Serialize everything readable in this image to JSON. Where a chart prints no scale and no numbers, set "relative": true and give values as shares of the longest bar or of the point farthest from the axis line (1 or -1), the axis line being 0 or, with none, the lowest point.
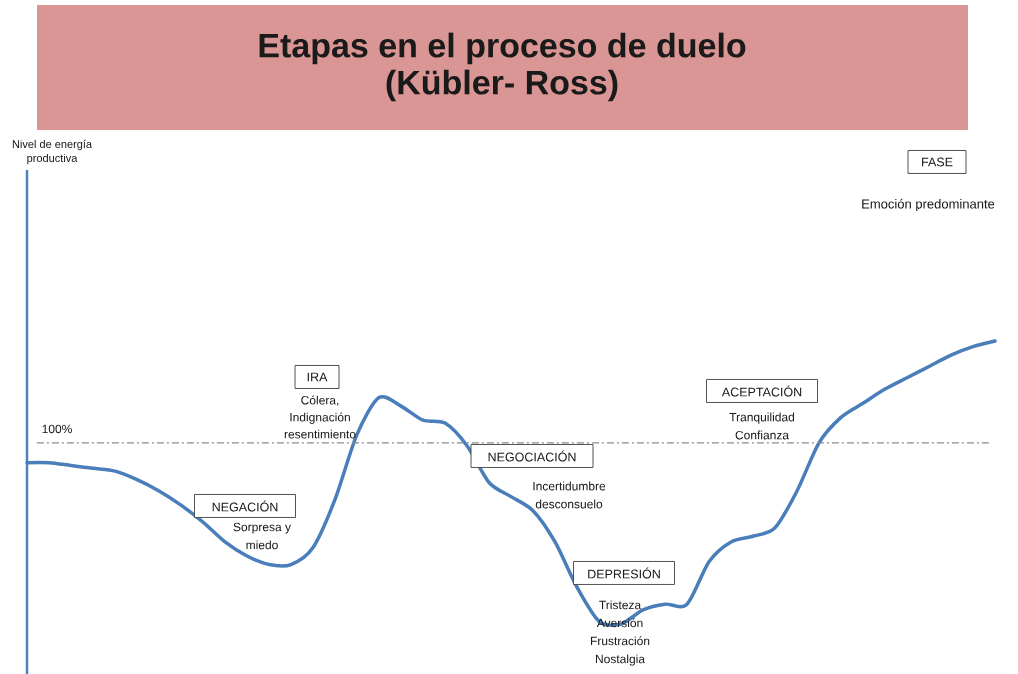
{
  "chart_data": {
    "type": "line",
    "title": "Etapas en el proceso de duelo (Kübler- Ross)",
    "categories": [
      null,
      null,
      null,
      null,
      null,
      null,
      null,
      null,
      null,
      null,
      null,
      null,
      null,
      null,
      null,
      null,
      null,
      null,
      null,
      null,
      null,
      null,
      null,
      null,
      null,
      null,
      null,
      null,
      null,
      null,
      null,
      null,
      null,
      null,
      null,
      null,
      null,
      null,
      null,
      null,
      null,
      null,
      null,
      null,
      null
    ],
    "relative": true,
    "marker": "none",
    "line_style": "solid",
    "series": [
      {
        "color": "#4a7ebb",
        "values": [
          0.57,
          0.57,
          0.56,
          0.55,
          0.54,
          0.51,
          0.47,
          0.42,
          0.36,
          0.29,
          0.24,
          0.21,
          0.21,
          0.27,
          0.44,
          0.67,
          0.8,
          0.77,
          0.72,
          0.71,
          0.63,
          0.5,
          0.45,
          0.4,
          0.29,
          0.13,
          0.01,
          0,
          0.05,
          0.07,
          0.07,
          0.22,
          0.29,
          0.31,
          0.34,
          0.47,
          0.64,
          0.73,
          0.78,
          0.83,
          0.87,
          0.91,
          0.95,
          0.98,
          1
        ]
      }
    ],
    "ref_lines": [
      {
        "axis": "y",
        "value": 0.64,
        "color": "#8c8c8c",
        "line_style": "dashdot"
      }
    ],
    "annotations": [
      "NEGACIÓN",
      "Sorpresa y miedo",
      "IRA",
      "Cólera, Indignación resentimiento",
      "NEGOCIACIÓN",
      "Incertidumbre desconsuelo",
      "DEPRESIÓN",
      "Tristeza Aversión Frustración Nostalgia",
      "ACEPTACIÓN",
      "Tranquilidad Confianza",
      "FASE",
      "Emoción predominante",
      "100%",
      "Nivel de energía productiva"
    ]
  }
}
